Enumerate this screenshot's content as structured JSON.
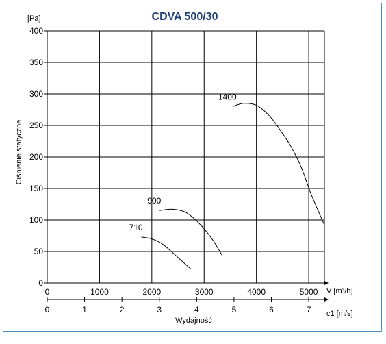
{
  "chart_data": {
    "type": "line",
    "title": "CDVA 500/30",
    "ylabel": "Ciśnienie statyczne",
    "yunit": "[Pa]",
    "xlabel": "Wydajność",
    "x_unit_primary": "V [m³/h]",
    "x_unit_secondary": "c1 [m/s]",
    "xlim": [
      0,
      5300
    ],
    "ylim": [
      0,
      400
    ],
    "x_ticks": [
      0,
      1000,
      2000,
      3000,
      4000,
      5000
    ],
    "y_ticks": [
      0,
      50,
      100,
      150,
      200,
      250,
      300,
      350,
      400
    ],
    "x2_ticks": [
      0,
      1,
      2,
      3,
      4,
      5,
      6,
      7
    ],
    "x2_per_unit_m3h": 0.0014,
    "grid": true,
    "series": [
      {
        "name": "710",
        "x": [
          1800,
          2000,
          2200,
          2400,
          2600,
          2750
        ],
        "y": [
          73,
          70,
          62,
          48,
          33,
          22
        ]
      },
      {
        "name": "900",
        "x": [
          2150,
          2400,
          2650,
          2900,
          3150,
          3350
        ],
        "y": [
          115,
          117,
          112,
          95,
          70,
          43
        ]
      },
      {
        "name": "1400",
        "x": [
          3550,
          3750,
          4000,
          4250,
          4450,
          4650,
          4850,
          5050,
          5300
        ],
        "y": [
          280,
          285,
          282,
          265,
          243,
          218,
          185,
          140,
          92
        ]
      }
    ]
  }
}
